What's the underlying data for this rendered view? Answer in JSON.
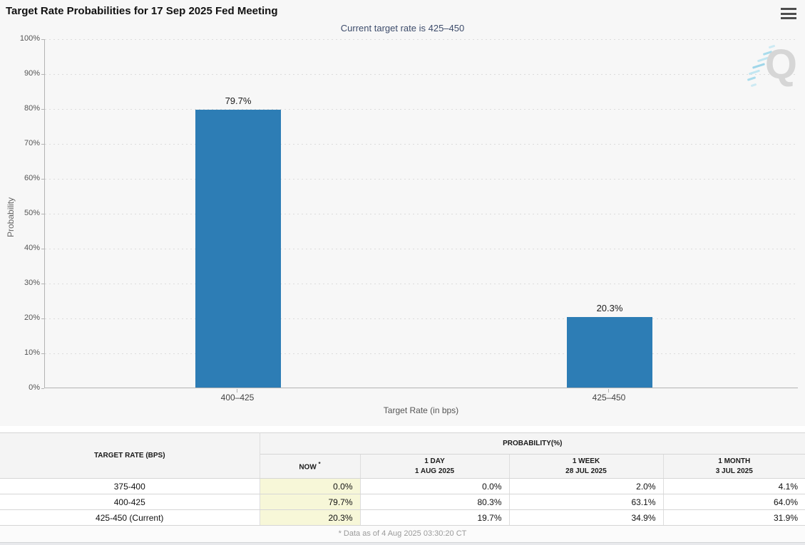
{
  "header": {
    "title": "Target Rate Probabilities for 17 Sep 2025 Fed Meeting"
  },
  "chart": {
    "subtitle": "Current target rate is 425–450",
    "ylabel": "Probability",
    "xlabel": "Target Rate (in bps)",
    "yticks": [
      "100%",
      "90%",
      "80%",
      "70%",
      "60%",
      "50%",
      "40%",
      "30%",
      "20%",
      "10%",
      "0%"
    ],
    "watermark_letter": "Q"
  },
  "chart_data": {
    "type": "bar",
    "title": "Target Rate Probabilities for 17 Sep 2025 Fed Meeting",
    "subtitle": "Current target rate is 425–450",
    "categories": [
      "400–425",
      "425–450"
    ],
    "values": [
      79.7,
      20.3
    ],
    "value_labels": [
      "79.7%",
      "20.3%"
    ],
    "xlabel": "Target Rate (in bps)",
    "ylabel": "Probability",
    "ylim": [
      0,
      100
    ],
    "ytick_step": 10,
    "grid": "horizontal-dotted",
    "legend": "none",
    "bar_color": "#2d7db5"
  },
  "table": {
    "rate_header": "TARGET RATE (BPS)",
    "group_header": "PROBABILITY(%)",
    "now_label": "NOW",
    "now_sup": "*",
    "columns": [
      {
        "label": "1 DAY",
        "date": "1 AUG 2025"
      },
      {
        "label": "1 WEEK",
        "date": "28 JUL 2025"
      },
      {
        "label": "1 MONTH",
        "date": "3 JUL 2025"
      }
    ],
    "rows": [
      {
        "rate": "375-400",
        "now": "0.0%",
        "day": "0.0%",
        "week": "2.0%",
        "month": "4.1%"
      },
      {
        "rate": "400-425",
        "now": "79.7%",
        "day": "80.3%",
        "week": "63.1%",
        "month": "64.0%"
      },
      {
        "rate": "425-450 (Current)",
        "now": "20.3%",
        "day": "19.7%",
        "week": "34.9%",
        "month": "31.9%"
      }
    ],
    "footnote": "* Data as of 4 Aug 2025 03:30:20 CT"
  },
  "colors": {
    "bar": "#2d7db5",
    "subtitle_text": "#3d4c6b",
    "now_column_bg": "#f7f7d8",
    "chart_background": "#f7f7f7"
  }
}
